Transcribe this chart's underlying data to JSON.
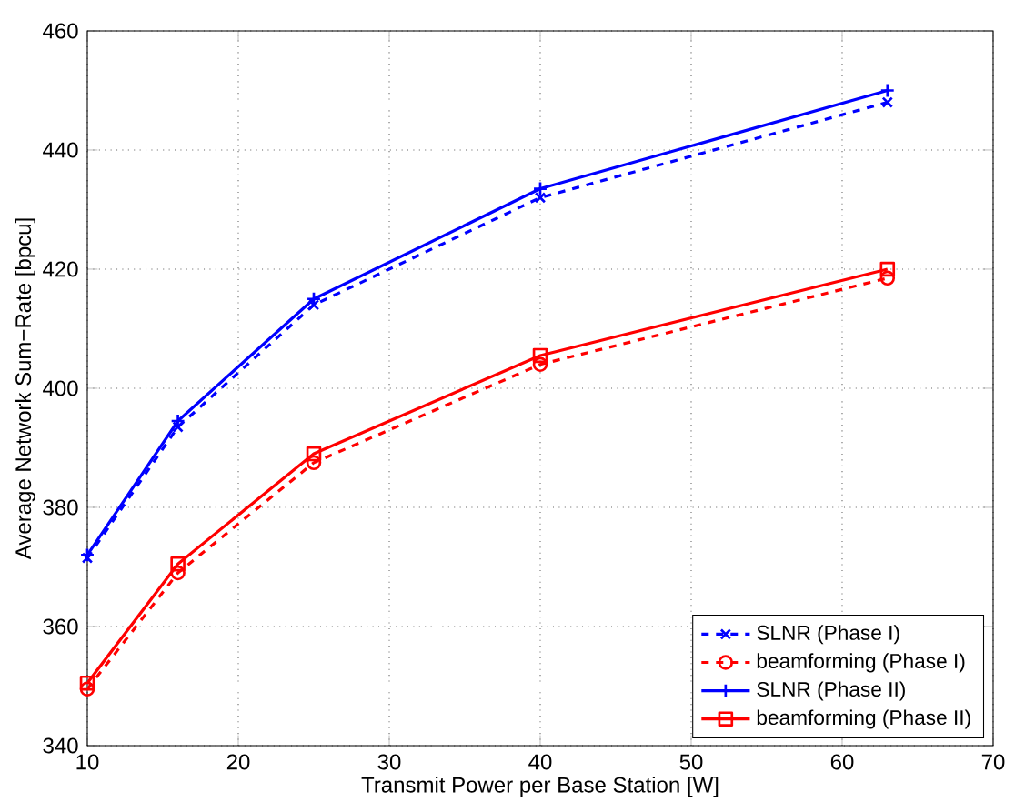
{
  "chart_data": {
    "type": "line",
    "xlabel": "Transmit Power per Base Station [W]",
    "ylabel": "Average Network Sum−Rate [bpcu]",
    "x": [
      10,
      16,
      25,
      40,
      63
    ],
    "series": [
      {
        "name": "SLNR (Phase I)",
        "color": "#0000ff",
        "marker": "cross",
        "line_style": "dashed",
        "values": [
          371.5,
          393.5,
          414,
          432,
          448
        ]
      },
      {
        "name": "beamforming (Phase I)",
        "color": "#ff0000",
        "marker": "circle",
        "line_style": "dashed",
        "values": [
          349.5,
          369,
          387.5,
          404,
          418.5
        ]
      },
      {
        "name": "SLNR (Phase II)",
        "color": "#0000ff",
        "marker": "plus",
        "line_style": "solid",
        "values": [
          372,
          394.5,
          415,
          433.5,
          450
        ]
      },
      {
        "name": "beamforming (Phase II)",
        "color": "#ff0000",
        "marker": "square",
        "line_style": "solid",
        "values": [
          350.5,
          370.5,
          389,
          405.5,
          420
        ]
      }
    ],
    "xlim": [
      10,
      70
    ],
    "xticks": [
      10,
      20,
      30,
      40,
      50,
      60,
      70
    ],
    "ylim": [
      340,
      460
    ],
    "yticks": [
      340,
      360,
      380,
      400,
      420,
      440,
      460
    ],
    "grid": true,
    "legend": "bottom right"
  }
}
